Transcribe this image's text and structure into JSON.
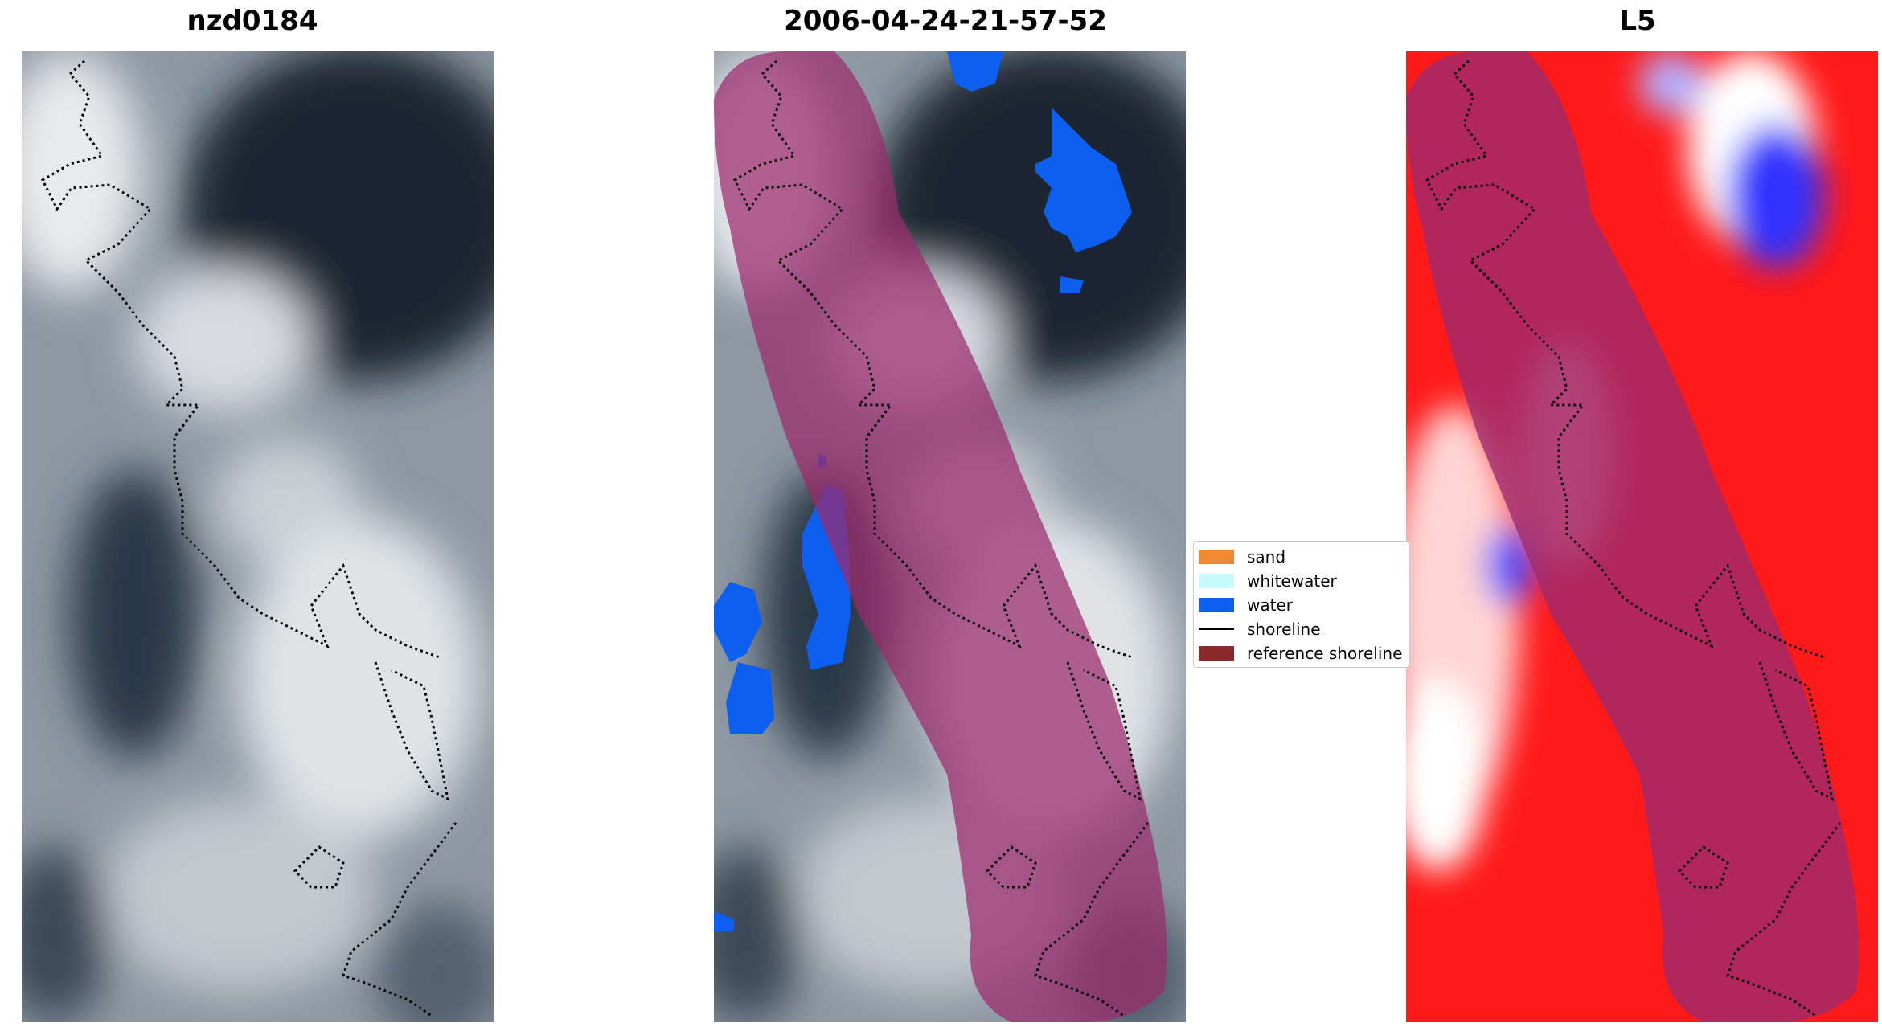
{
  "panels": [
    {
      "title": "nzd0184"
    },
    {
      "title": "2006-04-24-21-57-52"
    },
    {
      "title": "L5"
    }
  ],
  "legend": {
    "items": [
      {
        "label": "sand",
        "color": "#f28a32",
        "kind": "patch"
      },
      {
        "label": "whitewater",
        "color": "#c8fbfb",
        "kind": "patch"
      },
      {
        "label": "water",
        "color": "#0d5ff0",
        "kind": "patch"
      },
      {
        "label": "shoreline",
        "color": "#000000",
        "kind": "line"
      },
      {
        "label": "reference shoreline",
        "color": "#8b2a2a",
        "kind": "patch"
      }
    ]
  },
  "colors": {
    "reference_buffer": "#9b2a6e",
    "water_mask": "#0d5ff0",
    "index_high": "#ff0000",
    "index_low": "#0000ff"
  }
}
